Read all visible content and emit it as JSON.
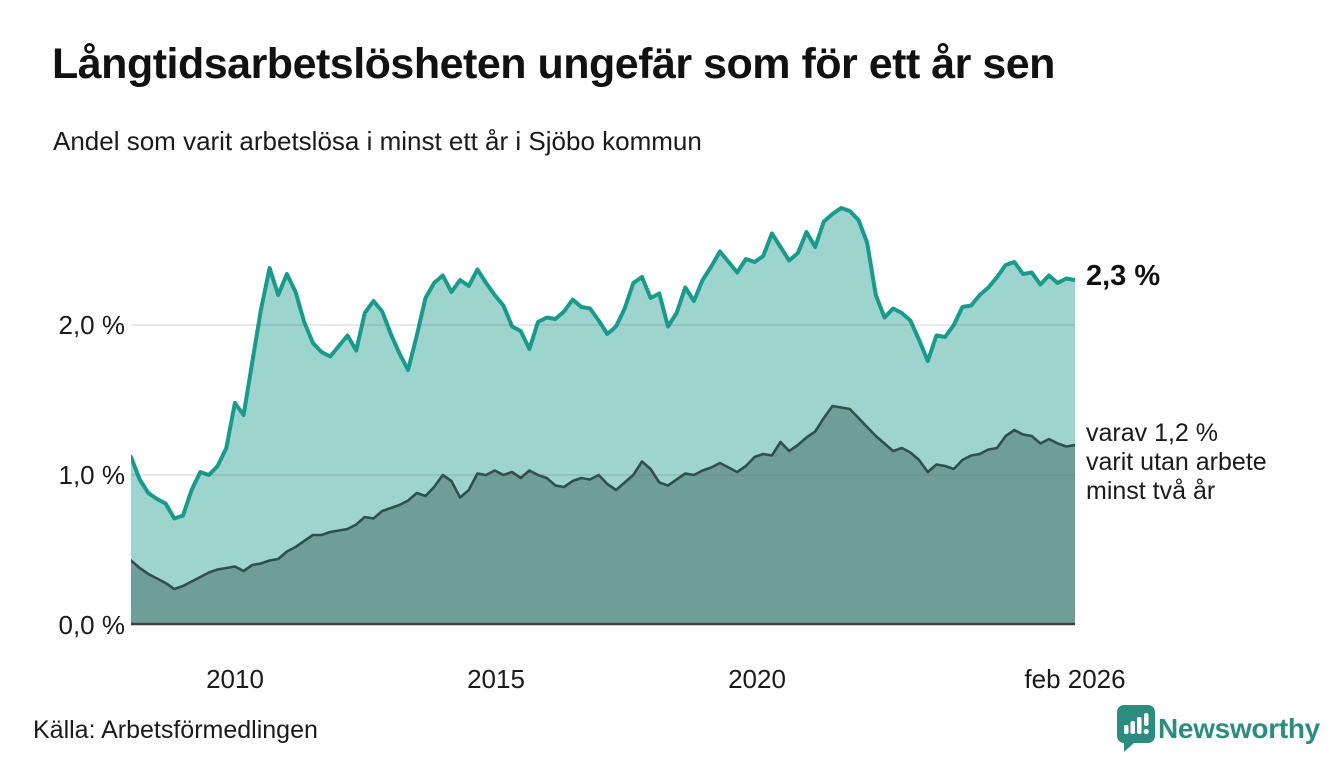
{
  "header": {
    "title": "Långtidsarbetslösheten ungefär som för ett år sen",
    "subtitle": "Andel som varit arbetslösa i minst ett år i Sjöbo kommun"
  },
  "chart_data": {
    "type": "area",
    "title": "Långtidsarbetslösheten ungefär som för ett år sen",
    "subtitle": "Andel som varit arbetslösa i minst ett år i Sjöbo kommun",
    "unit": "%",
    "x_range": {
      "start": 2008.0,
      "end": 2026.083,
      "points_per_year": 6,
      "end_label": "feb 2026"
    },
    "ylim": [
      0,
      2.9
    ],
    "grid": "horizontal",
    "y_axis": {
      "ticks": [
        {
          "label": "2,0 %",
          "value": 2.0
        },
        {
          "label": "1,0 %",
          "value": 1.0
        },
        {
          "label": "0,0 %",
          "value": 0.0
        }
      ]
    },
    "x_axis": {
      "ticks": [
        {
          "label": "2010",
          "year": 2010
        },
        {
          "label": "2015",
          "year": 2015
        },
        {
          "label": "2020",
          "year": 2020
        },
        {
          "label": "feb 2026",
          "year": 2026.083
        }
      ]
    },
    "series": [
      {
        "name": "arbetslösa minst ett år (totalt)",
        "end_label": "2,3 %",
        "end_value": 2.3,
        "line_color": "#1a9a8c",
        "fill_color": "#9dd4cd",
        "values": [
          1.12,
          0.97,
          0.88,
          0.84,
          0.81,
          0.71,
          0.73,
          0.9,
          1.02,
          1.0,
          1.06,
          1.18,
          1.48,
          1.4,
          1.75,
          2.1,
          2.38,
          2.2,
          2.34,
          2.22,
          2.02,
          1.88,
          1.82,
          1.79,
          1.86,
          1.93,
          1.83,
          2.08,
          2.16,
          2.09,
          1.94,
          1.81,
          1.7,
          1.93,
          2.18,
          2.28,
          2.33,
          2.22,
          2.3,
          2.26,
          2.37,
          2.28,
          2.2,
          2.13,
          1.99,
          1.96,
          1.84,
          2.02,
          2.05,
          2.04,
          2.09,
          2.17,
          2.12,
          2.11,
          2.03,
          1.94,
          1.99,
          2.11,
          2.28,
          2.32,
          2.18,
          2.21,
          1.99,
          2.08,
          2.25,
          2.16,
          2.3,
          2.39,
          2.49,
          2.42,
          2.35,
          2.44,
          2.42,
          2.46,
          2.61,
          2.52,
          2.43,
          2.48,
          2.62,
          2.52,
          2.69,
          2.74,
          2.78,
          2.76,
          2.7,
          2.55,
          2.2,
          2.05,
          2.11,
          2.08,
          2.03,
          1.9,
          1.76,
          1.93,
          1.92,
          2.0,
          2.12,
          2.13,
          2.2,
          2.25,
          2.32,
          2.4,
          2.42,
          2.34,
          2.35,
          2.27,
          2.33,
          2.28,
          2.31,
          2.3
        ]
      },
      {
        "name": "varav utan arbete minst två år",
        "end_value": 1.2,
        "annotation_lines": [
          "varav 1,2 %",
          "varit utan arbete",
          "minst två år"
        ],
        "line_color": "#30504c",
        "fill_color": "#6f9e99",
        "values": [
          0.43,
          0.38,
          0.34,
          0.31,
          0.28,
          0.24,
          0.26,
          0.29,
          0.32,
          0.35,
          0.37,
          0.38,
          0.39,
          0.36,
          0.4,
          0.41,
          0.43,
          0.44,
          0.49,
          0.52,
          0.56,
          0.6,
          0.6,
          0.62,
          0.63,
          0.64,
          0.67,
          0.72,
          0.71,
          0.76,
          0.78,
          0.8,
          0.83,
          0.88,
          0.86,
          0.92,
          1.0,
          0.96,
          0.85,
          0.9,
          1.01,
          1.0,
          1.03,
          1.0,
          1.02,
          0.98,
          1.03,
          1.0,
          0.98,
          0.93,
          0.92,
          0.96,
          0.98,
          0.97,
          1.0,
          0.94,
          0.9,
          0.95,
          1.0,
          1.09,
          1.04,
          0.95,
          0.93,
          0.97,
          1.01,
          1.0,
          1.03,
          1.05,
          1.08,
          1.05,
          1.02,
          1.06,
          1.12,
          1.14,
          1.13,
          1.22,
          1.16,
          1.2,
          1.25,
          1.29,
          1.38,
          1.46,
          1.45,
          1.44,
          1.38,
          1.32,
          1.26,
          1.21,
          1.16,
          1.18,
          1.15,
          1.1,
          1.02,
          1.07,
          1.06,
          1.04,
          1.1,
          1.13,
          1.14,
          1.17,
          1.18,
          1.26,
          1.3,
          1.27,
          1.26,
          1.21,
          1.24,
          1.21,
          1.19,
          1.2
        ]
      }
    ],
    "colors": {
      "baseline": "#3c403f",
      "gridline": "#5c5c5c",
      "text": "#1a1a1a",
      "brand_teal": "#2d8c80"
    }
  },
  "footer": {
    "source": "Källa: Arbetsförmedlingen",
    "brand": "Newsworthy"
  }
}
